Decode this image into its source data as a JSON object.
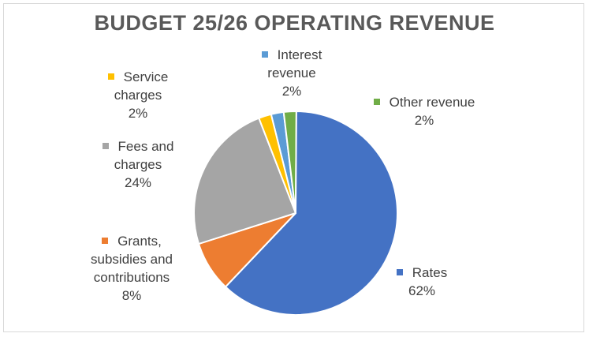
{
  "chart_data": {
    "type": "pie",
    "title": "BUDGET 25/26 OPERATING REVENUE",
    "slices": [
      {
        "name": "Interest revenue",
        "lines": [
          "Interest",
          "revenue"
        ],
        "value": 2,
        "percent_label": "2%",
        "color": "#5b9bd5"
      },
      {
        "name": "Other revenue",
        "lines": [
          "Other revenue"
        ],
        "value": 2,
        "percent_label": "2%",
        "color": "#70ad47"
      },
      {
        "name": "Rates",
        "lines": [
          "Rates"
        ],
        "value": 62,
        "percent_label": "62%",
        "color": "#4472c4"
      },
      {
        "name": "Grants, subsidies and contributions",
        "lines": [
          "Grants,",
          "subsidies and",
          "contributions"
        ],
        "value": 8,
        "percent_label": "8%",
        "color": "#ed7d31"
      },
      {
        "name": "Fees and charges",
        "lines": [
          "Fees and",
          "charges"
        ],
        "value": 24,
        "percent_label": "24%",
        "color": "#a5a5a5"
      },
      {
        "name": "Service charges",
        "lines": [
          "Service",
          "charges"
        ],
        "value": 2,
        "percent_label": "2%",
        "color": "#ffc000"
      }
    ],
    "start_angle_deg": -14,
    "slice_border_color": "#ffffff",
    "legend": "data-labels"
  }
}
